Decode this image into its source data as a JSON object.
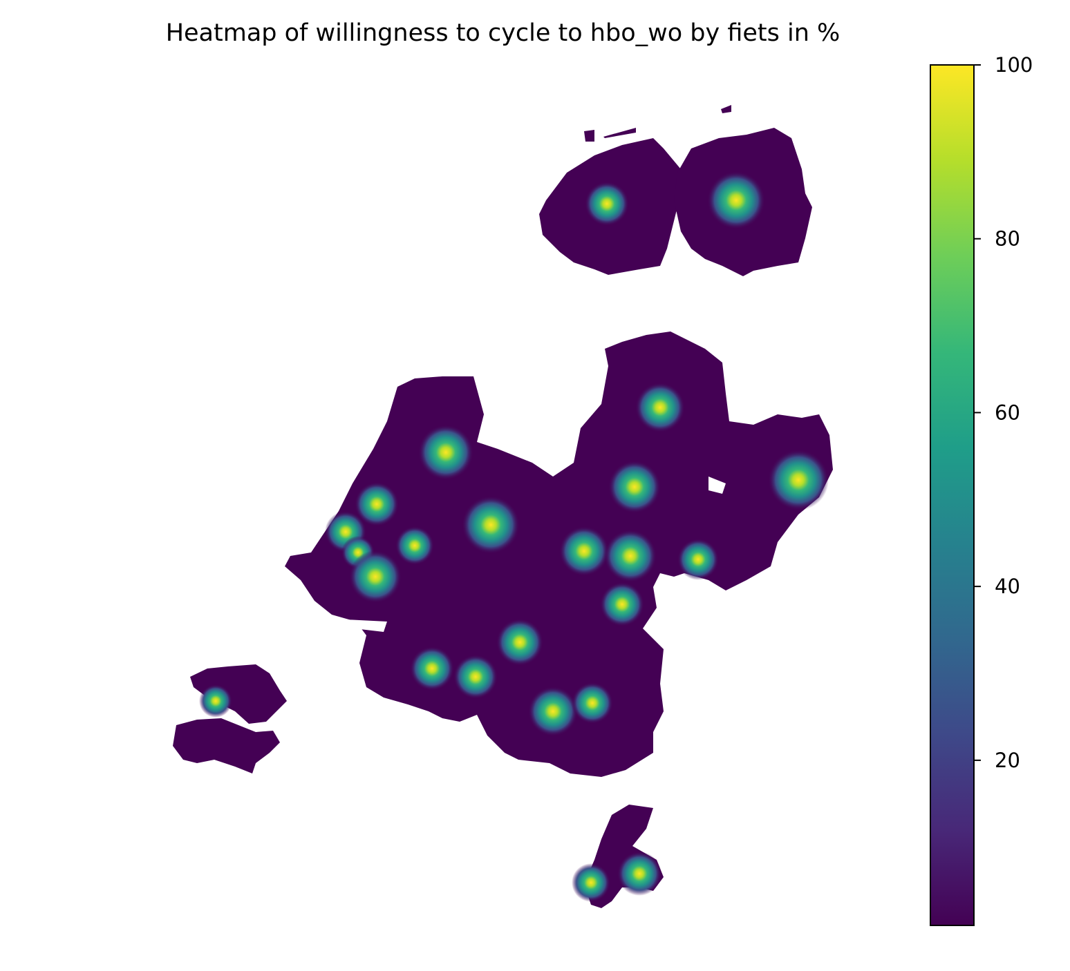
{
  "title": "Heatmap of willingness to cycle to hbo_wo by fiets in %",
  "colormap": "viridis",
  "colorbar": {
    "min": 1,
    "max": 100,
    "ticks": [
      {
        "value": 20,
        "label": "20"
      },
      {
        "value": 40,
        "label": "40"
      },
      {
        "value": 60,
        "label": "60"
      },
      {
        "value": 80,
        "label": "80"
      },
      {
        "value": 100,
        "label": "100"
      }
    ],
    "stops": [
      "#440154",
      "#482878",
      "#3e4989",
      "#31688e",
      "#26828e",
      "#1f9e89",
      "#35b779",
      "#6ece58",
      "#b5de2b",
      "#fde725"
    ]
  },
  "colors": {
    "base": "#440154",
    "halo": "#3b528b",
    "mid": "#21918c",
    "high": "#5ec962",
    "peak": "#fde725"
  }
}
